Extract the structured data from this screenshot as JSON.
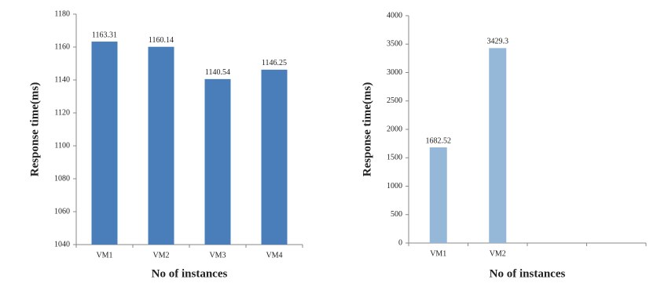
{
  "chart_data": [
    {
      "type": "bar",
      "categories": [
        "VM1",
        "VM2",
        "VM3",
        "VM4"
      ],
      "values": [
        1163.31,
        1160.14,
        1140.54,
        1146.25
      ],
      "color": "#4a7ebb",
      "ylim": [
        1040,
        1180
      ],
      "yticks": [
        1040,
        1060,
        1080,
        1100,
        1120,
        1140,
        1160,
        1180
      ],
      "y_label": "Response time(ms)",
      "x_label": "No of instances",
      "grid": false
    },
    {
      "type": "bar",
      "categories": [
        "VM1",
        "VM2",
        null,
        null
      ],
      "values": [
        1682.52,
        3429.3,
        null,
        null
      ],
      "color": "#95b8d8",
      "ylim": [
        0,
        4000
      ],
      "yticks": [
        0,
        500,
        1000,
        1500,
        2000,
        2500,
        3000,
        3500,
        4000
      ],
      "y_label": "Response time(ms)",
      "x_label": "No of instances",
      "grid": false
    }
  ]
}
